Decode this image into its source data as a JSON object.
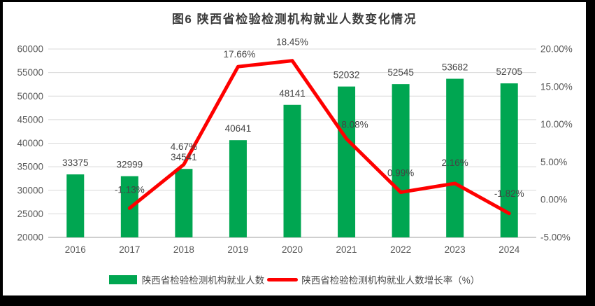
{
  "window": {
    "frame_color": "#000000",
    "background_color": "#ffffff"
  },
  "chart_data": {
    "type": "combo-bar-line",
    "title": "图6 陕西省检验检测机构就业人数变化情况",
    "categories": [
      "2016",
      "2017",
      "2018",
      "2019",
      "2020",
      "2021",
      "2022",
      "2023",
      "2024"
    ],
    "series": [
      {
        "name": "陕西省检验检测机构就业人数",
        "type": "bar",
        "axis": "left",
        "color": "#00A651",
        "values": [
          33375,
          32999,
          34541,
          40641,
          48141,
          52032,
          52545,
          53682,
          52705
        ],
        "labels": [
          "33375",
          "32999",
          "34541",
          "40641",
          "48141",
          "52032",
          "52545",
          "53682",
          "52705"
        ]
      },
      {
        "name": "陕西省检验检测机构就业人数增长率（%）",
        "type": "line",
        "axis": "right",
        "color": "#FE0000",
        "values": [
          null,
          -1.13,
          4.67,
          17.66,
          18.45,
          8.08,
          0.99,
          2.16,
          -1.82
        ],
        "labels": [
          "",
          "-1.13%",
          "4.67%",
          "17.66%",
          "18.45%",
          "8.08%",
          "0.99%",
          "2.16%",
          "-1.82%"
        ]
      }
    ],
    "left_axis": {
      "min": 20000,
      "max": 60000,
      "ticks": [
        "60000",
        "55000",
        "50000",
        "45000",
        "40000",
        "35000",
        "30000",
        "25000",
        "20000"
      ]
    },
    "right_axis": {
      "min": -5,
      "max": 20,
      "ticks": [
        "20.00%",
        "15.00%",
        "10.00%",
        "5.00%",
        "0.00%",
        "-5.00%"
      ]
    },
    "grid": {
      "line_color": "#D9D9D9",
      "axis_line_color": "#BFBFBF"
    },
    "text_colors": {
      "tick_label": "#595959",
      "data_label": "#444444"
    },
    "legend": [
      {
        "label": "陕西省检验检测机构就业人数",
        "swatch": "bar",
        "color": "#00A651"
      },
      {
        "label": "陕西省检验检测机构就业人数增长率（%）",
        "swatch": "line",
        "color": "#FE0000"
      }
    ],
    "legend_position": "bottom"
  }
}
